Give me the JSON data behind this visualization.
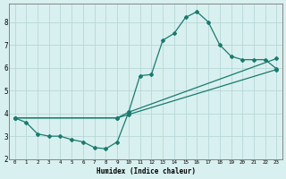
{
  "xlabel": "Humidex (Indice chaleur)",
  "bg_color": "#d8f0ef",
  "grid_color": "#b8d8d8",
  "line_color": "#1a7a6e",
  "xlim": [
    -0.5,
    23.5
  ],
  "ylim": [
    2.0,
    8.8
  ],
  "xticks": [
    0,
    1,
    2,
    3,
    4,
    5,
    6,
    7,
    8,
    9,
    10,
    11,
    12,
    13,
    14,
    15,
    16,
    17,
    18,
    19,
    20,
    21,
    22,
    23
  ],
  "yticks": [
    2,
    3,
    4,
    5,
    6,
    7,
    8
  ],
  "curve1_x": [
    0,
    1,
    2,
    3,
    4,
    5,
    6,
    7,
    8,
    9,
    10,
    11,
    12,
    13,
    14,
    15,
    16,
    17,
    18,
    19,
    20,
    21,
    22,
    23
  ],
  "curve1_y": [
    3.8,
    3.6,
    3.1,
    3.0,
    3.0,
    2.85,
    2.75,
    2.5,
    2.45,
    2.75,
    4.05,
    5.65,
    5.7,
    7.2,
    7.5,
    8.2,
    8.45,
    8.0,
    7.0,
    6.5,
    6.35,
    6.35,
    6.35,
    5.95
  ],
  "curve2_x": [
    0,
    9,
    10,
    23
  ],
  "curve2_y": [
    3.8,
    3.8,
    4.05,
    6.4
  ],
  "curve3_x": [
    0,
    9,
    10,
    23
  ],
  "curve3_y": [
    3.8,
    3.8,
    3.95,
    5.92
  ]
}
